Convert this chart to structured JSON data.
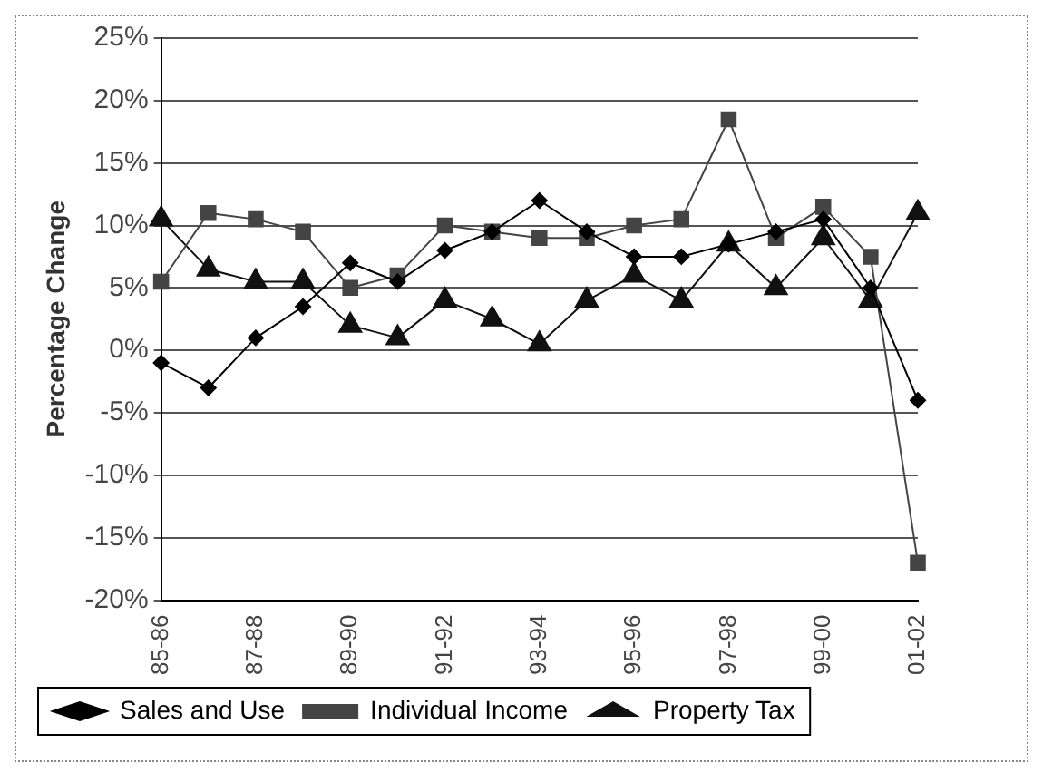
{
  "chart_data": {
    "type": "line",
    "ylabel": "Percentage Change",
    "categories": [
      "85-86",
      null,
      "87-88",
      null,
      "89-90",
      null,
      "91-92",
      null,
      "93-94",
      null,
      "95-96",
      null,
      "97-98",
      null,
      "99-00",
      null,
      "01-02"
    ],
    "series": [
      {
        "name": "Sales and Use",
        "color": "#000000",
        "marker": "diamond",
        "values": [
          -1,
          -3,
          1,
          3.5,
          7,
          5.5,
          8,
          9.5,
          12,
          9.5,
          7.5,
          7.5,
          8.5,
          9.5,
          10.5,
          5,
          -4
        ]
      },
      {
        "name": "Individual Income",
        "color": "#444444",
        "marker": "square",
        "values": [
          5.5,
          11,
          10.5,
          9.5,
          5,
          6,
          10,
          9.5,
          9,
          9,
          10,
          10.5,
          18.5,
          9,
          11.5,
          7.5,
          -17
        ]
      },
      {
        "name": "Property Tax",
        "color": "#111111",
        "marker": "triangle",
        "values": [
          10.5,
          6.5,
          5.5,
          5.5,
          2,
          1,
          4,
          2.5,
          0.5,
          4,
          6,
          4,
          8.5,
          5,
          9,
          4,
          11
        ]
      }
    ],
    "ylim": [
      -20,
      25
    ],
    "yticks": [
      {
        "value": -20,
        "label": "-20%"
      },
      {
        "value": -15,
        "label": "-15%"
      },
      {
        "value": -10,
        "label": "-10%"
      },
      {
        "value": -5,
        "label": "-5%"
      },
      {
        "value": 0,
        "label": "0%"
      },
      {
        "value": 5,
        "label": "5%"
      },
      {
        "value": 10,
        "label": "10%"
      },
      {
        "value": 15,
        "label": "15%"
      },
      {
        "value": 20,
        "label": "20%"
      },
      {
        "value": 25,
        "label": "25%"
      }
    ],
    "grid": "y",
    "legend": "bottom",
    "line_style": "solid"
  }
}
